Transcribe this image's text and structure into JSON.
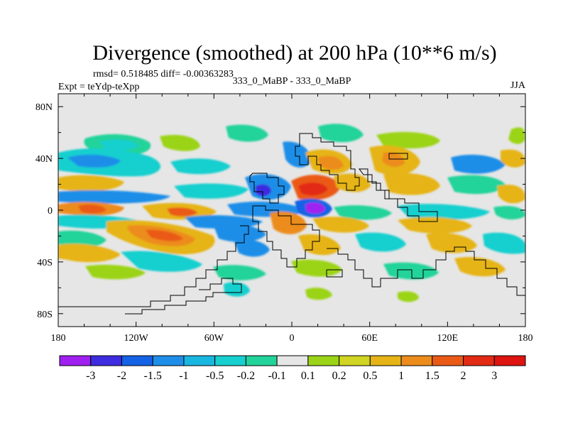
{
  "chart_data": {
    "type": "heatmap",
    "title": "Divergence (smoothed) at 200 hPa (10**6 m/s)",
    "stats_label": "rmsd= 0.518485 diff= -0.00363283",
    "left_label": "Expt = teYdp-teXpp",
    "center_label": "333_0_MaBP - 333_0_MaBP",
    "right_label": "JJA",
    "x_ticks": [
      "180",
      "120W",
      "60W",
      "0",
      "60E",
      "120E",
      "180"
    ],
    "x_tick_values": [
      -180,
      -120,
      -60,
      0,
      60,
      120,
      180
    ],
    "y_ticks": [
      "80N",
      "40N",
      "0",
      "40S",
      "80S"
    ],
    "y_tick_values": [
      80,
      40,
      0,
      -40,
      -80
    ],
    "xlim": [
      -180,
      180
    ],
    "ylim": [
      -90,
      90
    ],
    "colorbar": {
      "levels": [
        "-3",
        "-2",
        "-1.5",
        "-1",
        "-0.5",
        "-0.2",
        "-0.1",
        "0.1",
        "0.2",
        "0.5",
        "1",
        "1.5",
        "2",
        "3"
      ],
      "colors": [
        "#a020f0",
        "#3d2ce0",
        "#1462e6",
        "#1e8ee8",
        "#19b6e0",
        "#17cfcf",
        "#22d39a",
        "#e6e6e6",
        "#9bd417",
        "#d0d422",
        "#e6b416",
        "#ec8c1c",
        "#ea5a17",
        "#e22b14",
        "#de1410"
      ]
    },
    "features": [
      {
        "name": "strong-convergence-africa",
        "lon": 15,
        "lat": 0,
        "value": -3
      },
      {
        "name": "convergence-atlantic",
        "lon": -20,
        "lat": 15,
        "value": -2
      },
      {
        "name": "divergence-west-africa",
        "lon": 10,
        "lat": 15,
        "value": 2
      },
      {
        "name": "divergence-south-pacific",
        "lon": -95,
        "lat": -20,
        "value": 1.5
      },
      {
        "name": "divergence-central-pacific",
        "lon": -140,
        "lat": 0,
        "value": 1.5
      },
      {
        "name": "divergence-indian-ocean",
        "lon": 75,
        "lat": 10,
        "value": 1
      },
      {
        "name": "convergence-south-atlantic",
        "lon": -10,
        "lat": -25,
        "value": -1
      }
    ]
  }
}
